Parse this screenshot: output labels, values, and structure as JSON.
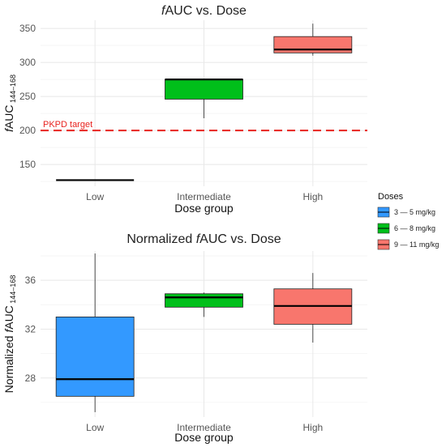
{
  "chart_data": [
    {
      "type": "box",
      "title_prefix": "f",
      "title_rest": "AUC vs. Dose",
      "xlabel": "Dose group",
      "ylabel_prefix": "f",
      "ylabel_main": "AUC",
      "ylabel_sub": "144–168",
      "categories": [
        "Low",
        "Intermediate",
        "High"
      ],
      "ylim": [
        118,
        362
      ],
      "yticks": [
        150,
        200,
        250,
        300,
        350
      ],
      "grid": true,
      "reference_line": {
        "y": 200,
        "label": "PKPD target",
        "color": "#e8231f",
        "style": "dashed"
      },
      "boxes": [
        {
          "category": "Low",
          "series": "3 — 5 mg/kg",
          "min": 127,
          "q1": 127,
          "median": 127,
          "q3": 127,
          "max": 127,
          "fill": "#3399ff"
        },
        {
          "category": "Intermediate",
          "series": "6 — 8 mg/kg",
          "min": 218,
          "q1": 246,
          "median": 275,
          "q3": 275,
          "max": 275,
          "fill": "#00bf1a"
        },
        {
          "category": "High",
          "series": "9 — 11 mg/kg",
          "min": 310,
          "q1": 314,
          "median": 319,
          "q3": 338,
          "max": 357,
          "fill": "#f8766d"
        }
      ]
    },
    {
      "type": "box",
      "title_prefix": "Normalized ",
      "title_italic": "f",
      "title_rest": "AUC vs. Dose",
      "xlabel": "Dose group",
      "ylabel_prefix": "Normalized ",
      "ylabel_italic": "f",
      "ylabel_main": "AUC",
      "ylabel_sub": "144–168",
      "categories": [
        "Low",
        "Intermediate",
        "High"
      ],
      "ylim": [
        24.8,
        38.4
      ],
      "yticks": [
        28,
        32,
        36
      ],
      "grid": true,
      "boxes": [
        {
          "category": "Low",
          "series": "3 — 5 mg/kg",
          "min": 25.2,
          "q1": 26.5,
          "median": 27.9,
          "q3": 33.0,
          "max": 38.2,
          "fill": "#3399ff"
        },
        {
          "category": "Intermediate",
          "series": "6 — 8 mg/kg",
          "min": 33.0,
          "q1": 33.8,
          "median": 34.6,
          "q3": 34.9,
          "max": 35.0,
          "fill": "#00bf1a"
        },
        {
          "category": "High",
          "series": "9 — 11 mg/kg",
          "min": 30.9,
          "q1": 32.4,
          "median": 33.9,
          "q3": 35.3,
          "max": 36.6,
          "fill": "#f8766d"
        }
      ]
    }
  ],
  "legend": {
    "title": "Doses",
    "placement": "right",
    "items": [
      {
        "label": "3 — 5 mg/kg",
        "color": "#3399ff"
      },
      {
        "label": "6 — 8 mg/kg",
        "color": "#00bf1a"
      },
      {
        "label": "9 — 11 mg/kg",
        "color": "#f8766d"
      }
    ]
  }
}
